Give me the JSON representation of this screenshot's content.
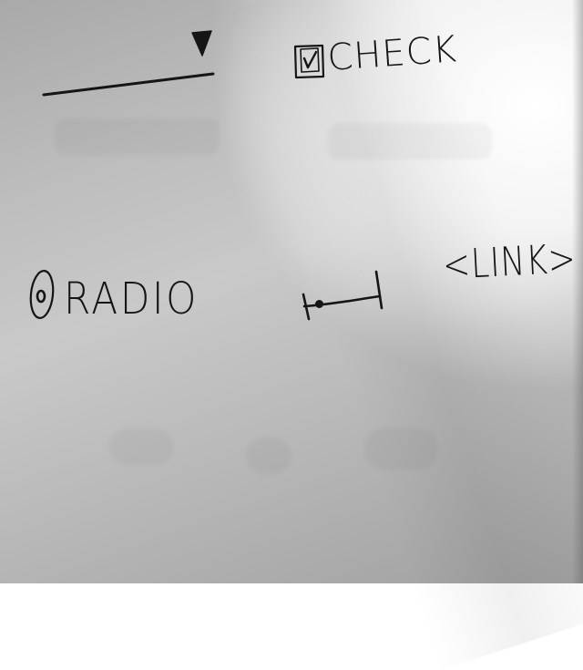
{
  "widgets": {
    "checkbox": {
      "label": "CHECK",
      "checked": true
    },
    "radio": {
      "label": "RADIO",
      "selected": true
    },
    "link": {
      "label": "<LINK>"
    },
    "slider": {
      "value": 0.2
    },
    "dropdown": {
      "value": ""
    }
  },
  "colors": {
    "ink": "#151515",
    "paper": "#c2c2c2"
  },
  "icons": [
    "dropdown-arrow-icon",
    "checkmark-icon",
    "radio-dot-icon"
  ]
}
